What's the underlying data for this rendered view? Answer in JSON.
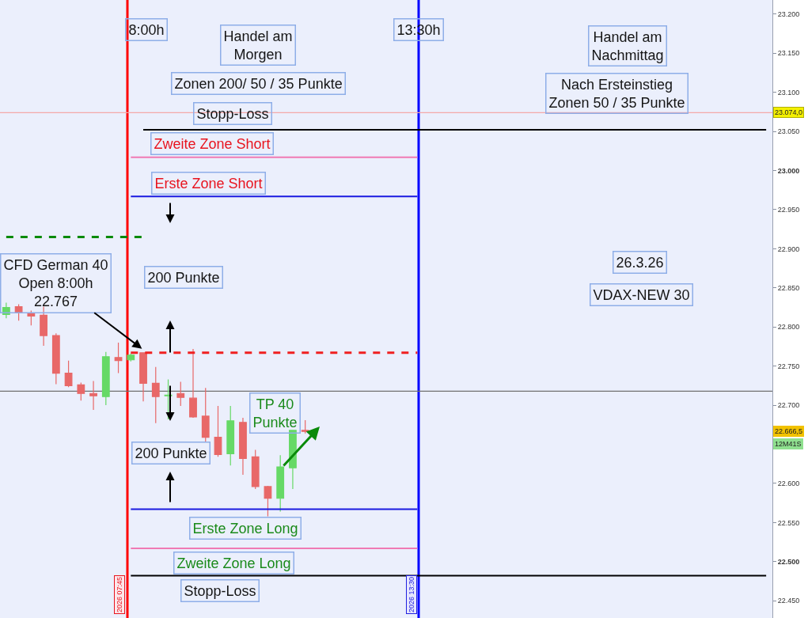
{
  "chart_data": {
    "type": "candlestick",
    "categories": [
      null,
      null,
      null,
      null,
      null,
      null,
      null,
      null,
      null,
      null,
      null,
      null,
      null,
      null,
      null,
      null,
      null,
      null,
      null,
      null,
      null,
      null,
      null,
      null,
      null,
      null,
      null,
      null,
      null,
      null,
      null,
      null,
      null,
      null,
      null,
      null,
      null,
      null,
      null,
      null,
      null,
      null,
      null,
      null,
      null,
      null,
      null,
      null,
      null,
      null,
      null,
      null,
      null,
      null,
      null,
      null,
      null,
      null,
      null,
      null,
      null,
      null
    ],
    "ohlc": [
      [
        22816,
        22831,
        22811,
        22825
      ],
      [
        22826,
        22829,
        22808,
        22818
      ],
      [
        22817,
        22821,
        22802,
        22814
      ],
      [
        22815,
        22826,
        22776,
        22789
      ],
      [
        22789,
        22792,
        22727,
        22741
      ],
      [
        22741,
        22757,
        22723,
        22725
      ],
      [
        22726,
        22729,
        22706,
        22715
      ],
      [
        22715,
        22731,
        22694,
        22712
      ],
      [
        22711,
        22768,
        22700,
        22762
      ],
      [
        22761,
        22780,
        22741,
        22757
      ],
      [
        22758,
        22766,
        22756,
        22764
      ],
      [
        22767,
        22767,
        22705,
        22728
      ],
      [
        22728,
        22749,
        22677,
        22711
      ],
      [
        22712,
        22733,
        22682,
        22713
      ],
      [
        22715,
        22730,
        22699,
        22710
      ],
      [
        22709,
        22772,
        22684,
        22685
      ],
      [
        22686,
        22722,
        22653,
        22659
      ],
      [
        22659,
        22699,
        22634,
        22637
      ],
      [
        22638,
        22699,
        22623,
        22680
      ],
      [
        22678,
        22684,
        22611,
        22632
      ],
      [
        22634,
        22643,
        22593,
        22596
      ],
      [
        22596,
        22597,
        22558,
        22581
      ],
      [
        22581,
        22636,
        22564,
        22621
      ],
      [
        22620,
        22668,
        22593,
        22668
      ],
      [
        22668,
        22681,
        22664,
        22666.5
      ],
      null,
      null,
      null,
      null,
      null,
      null,
      null,
      null,
      null,
      null,
      null,
      null,
      null,
      null,
      null,
      null,
      null,
      null,
      null,
      null,
      null,
      null,
      null,
      null,
      null,
      null,
      null,
      null,
      null,
      null,
      null,
      null,
      null,
      null,
      null,
      null,
      null
    ],
    "colors": [
      "#66d966",
      "#e86868",
      "#e86868",
      "#e86868",
      "#e86868",
      "#e86868",
      "#e86868",
      "#e86868",
      "#66d966",
      "#e86868",
      "#66d966",
      "#e86868",
      "#e86868",
      "#66d966",
      "#e86868",
      "#e86868",
      "#e86868",
      "#e86868",
      "#66d966",
      "#e86868",
      "#e86868",
      "#e86868",
      "#66d966",
      "#66d966",
      "#e86868",
      null,
      null,
      null,
      null,
      null,
      null,
      null,
      null,
      null,
      null,
      null,
      null,
      null,
      null,
      null,
      null,
      null,
      null,
      null,
      null,
      null,
      null,
      null,
      null,
      null,
      null,
      null,
      null,
      null,
      null,
      null,
      null,
      null,
      null,
      null,
      null,
      null
    ],
    "series": [
      {
        "type": "line",
        "color": "#000000",
        "line_style": "solid",
        "values": [
          null,
          null,
          null,
          null,
          null,
          null,
          null,
          null,
          null,
          null,
          null,
          23052,
          23052,
          23052,
          23052,
          23052,
          23052,
          23052,
          23052,
          23052,
          23052,
          23052,
          23052,
          23052,
          23052,
          23052,
          23052,
          23052,
          23052,
          23052,
          23052,
          23052,
          23052,
          23052,
          23052,
          23052,
          23052,
          23052,
          23052,
          23052,
          23052,
          23052,
          23052,
          23052,
          23052,
          23052,
          23052,
          23052,
          23052,
          23052,
          23052,
          23052,
          23052,
          23052,
          23052,
          23052,
          23052,
          23052,
          23052,
          23052,
          23052,
          23052
        ]
      },
      {
        "type": "line",
        "color": "#f07ab4",
        "line_style": "solid",
        "values": [
          null,
          null,
          null,
          null,
          null,
          null,
          null,
          null,
          null,
          null,
          23017,
          23017,
          23017,
          23017,
          23017,
          23017,
          23017,
          23017,
          23017,
          23017,
          23017,
          23017,
          23017,
          23017,
          23017,
          23017,
          23017,
          23017,
          23017,
          23017,
          23017,
          23017,
          23017,
          23017,
          null,
          null,
          null,
          null,
          null,
          null,
          null,
          null,
          null,
          null,
          null,
          null,
          null,
          null,
          null,
          null,
          null,
          null,
          null,
          null,
          null,
          null,
          null,
          null,
          null,
          null,
          null,
          null
        ]
      },
      {
        "type": "line",
        "color": "#1a1ae0",
        "line_style": "solid",
        "values": [
          null,
          null,
          null,
          null,
          null,
          null,
          null,
          null,
          null,
          null,
          22967,
          22967,
          22967,
          22967,
          22967,
          22967,
          22967,
          22967,
          22967,
          22967,
          22967,
          22967,
          22967,
          22967,
          22967,
          22967,
          22967,
          22967,
          22967,
          22967,
          22967,
          22967,
          22967,
          22967,
          null,
          null,
          null,
          null,
          null,
          null,
          null,
          null,
          null,
          null,
          null,
          null,
          null,
          null,
          null,
          null,
          null,
          null,
          null,
          null,
          null,
          null,
          null,
          null,
          null,
          null,
          null,
          null
        ]
      },
      {
        "type": "line",
        "color": "#0a8a0a",
        "line_style": "dashed",
        "values": [
          22915,
          22915,
          22915,
          22915,
          22915,
          22915,
          22915,
          22915,
          22915,
          22915,
          22915,
          22915,
          null,
          null,
          null,
          null,
          null,
          null,
          null,
          null,
          null,
          null,
          null,
          null,
          null,
          null,
          null,
          null,
          null,
          null,
          null,
          null,
          null,
          null,
          null,
          null,
          null,
          null,
          null,
          null,
          null,
          null,
          null,
          null,
          null,
          null,
          null,
          null,
          null,
          null,
          null,
          null,
          null,
          null,
          null,
          null,
          null,
          null,
          null,
          null,
          null,
          null
        ]
      },
      {
        "type": "line",
        "color": "#f02020",
        "line_style": "dashed",
        "values": [
          null,
          null,
          null,
          null,
          null,
          null,
          null,
          null,
          null,
          null,
          22767,
          22767,
          22767,
          22767,
          22767,
          22767,
          22767,
          22767,
          22767,
          22767,
          22767,
          22767,
          22767,
          22767,
          22767,
          22767,
          22767,
          22767,
          22767,
          22767,
          22767,
          22767,
          22767,
          22767,
          null,
          null,
          null,
          null,
          null,
          null,
          null,
          null,
          null,
          null,
          null,
          null,
          null,
          null,
          null,
          null,
          null,
          null,
          null,
          null,
          null,
          null,
          null,
          null,
          null,
          null,
          null,
          null
        ]
      },
      {
        "type": "line",
        "color": "#1a1ae0",
        "line_style": "solid",
        "values": [
          null,
          null,
          null,
          null,
          null,
          null,
          null,
          null,
          null,
          null,
          22567,
          22567,
          22567,
          22567,
          22567,
          22567,
          22567,
          22567,
          22567,
          22567,
          22567,
          22567,
          22567,
          22567,
          22567,
          22567,
          22567,
          22567,
          22567,
          22567,
          22567,
          22567,
          22567,
          22567,
          null,
          null,
          null,
          null,
          null,
          null,
          null,
          null,
          null,
          null,
          null,
          null,
          null,
          null,
          null,
          null,
          null,
          null,
          null,
          null,
          null,
          null,
          null,
          null,
          null,
          null,
          null,
          null
        ]
      },
      {
        "type": "line",
        "color": "#f07ab4",
        "line_style": "solid",
        "values": [
          null,
          null,
          null,
          null,
          null,
          null,
          null,
          null,
          null,
          null,
          22517,
          22517,
          22517,
          22517,
          22517,
          22517,
          22517,
          22517,
          22517,
          22517,
          22517,
          22517,
          22517,
          22517,
          22517,
          22517,
          22517,
          22517,
          22517,
          22517,
          22517,
          22517,
          22517,
          22517,
          null,
          null,
          null,
          null,
          null,
          null,
          null,
          null,
          null,
          null,
          null,
          null,
          null,
          null,
          null,
          null,
          null,
          null,
          null,
          null,
          null,
          null,
          null,
          null,
          null,
          null,
          null,
          null
        ]
      },
      {
        "type": "line",
        "color": "#000000",
        "line_style": "solid",
        "values": [
          null,
          null,
          null,
          null,
          null,
          null,
          null,
          null,
          null,
          null,
          22482,
          22482,
          22482,
          22482,
          22482,
          22482,
          22482,
          22482,
          22482,
          22482,
          22482,
          22482,
          22482,
          22482,
          22482,
          22482,
          22482,
          22482,
          22482,
          22482,
          22482,
          22482,
          22482,
          22482,
          22482,
          22482,
          22482,
          22482,
          22482,
          22482,
          22482,
          22482,
          22482,
          22482,
          22482,
          22482,
          22482,
          22482,
          22482,
          22482,
          22482,
          22482,
          22482,
          22482,
          22482,
          22482,
          22482,
          22482,
          22482,
          22482,
          22482,
          22482
        ]
      }
    ],
    "ref_lines": [
      {
        "axis": "y",
        "value": 23074.0,
        "label": "23.074,0",
        "color": "#f4a8a8"
      },
      {
        "axis": "y",
        "value": 22718,
        "color": "#707070"
      }
    ],
    "annotations": [
      "8:00h",
      "13:30h",
      "Handel am\nMorgen",
      "Zonen 200/ 50 / 35 Punkte",
      {
        "text": "Stopp-Loss",
        "y": 23052
      },
      {
        "text": "Zweite Zone Short",
        "y": 23017
      },
      {
        "text": "Erste Zone Short",
        "y": 22967
      },
      "200 Punkte",
      "CFD German 40\nOpen 8:00h\n22.767",
      "TP 40\nPunkte",
      "200 Punkte",
      {
        "text": "Erste Zone Long",
        "y": 22567
      },
      {
        "text": "Zweite Zone Long",
        "y": 22517
      },
      {
        "text": "Stopp-Loss",
        "y": 22482
      },
      "Handel am\nNachmittag",
      "Nach Ersteinstieg\nZonen 50 / 35 Punkte",
      "26.3.26",
      "VDAX-NEW 30",
      {
        "text": "22.666,5",
        "y": 22666.5
      },
      "12M41S",
      "2026 07:45",
      "2026 13:30"
    ],
    "tick_labels": "y",
    "ylim": [
      22428,
      23218
    ],
    "yticks": [
      {
        "value": 22450,
        "label": "22.450"
      },
      {
        "value": 22500,
        "label": "22.500"
      },
      {
        "value": 22550,
        "label": "22.550"
      },
      {
        "value": 22600,
        "label": "22.600"
      },
      {
        "value": 22700,
        "label": "22.700"
      },
      {
        "value": 22750,
        "label": "22.750"
      },
      {
        "value": 22800,
        "label": "22.800"
      },
      {
        "value": 22850,
        "label": "22.850"
      },
      {
        "value": 22900,
        "label": "22.900"
      },
      {
        "value": 22950,
        "label": "22.950"
      },
      {
        "value": 23000,
        "label": "23.000"
      },
      {
        "value": 23050,
        "label": "23.050"
      },
      {
        "value": 23100,
        "label": "23.100"
      },
      {
        "value": 23150,
        "label": "23.150"
      },
      {
        "value": 23200,
        "label": "23.200"
      }
    ]
  }
}
